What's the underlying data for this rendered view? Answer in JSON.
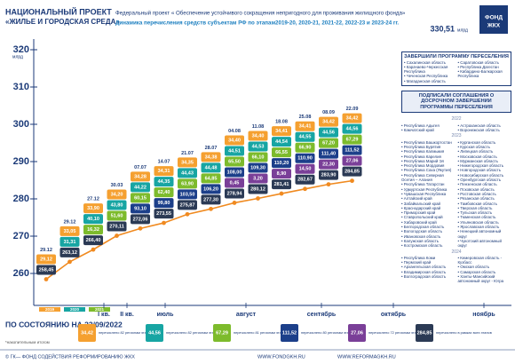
{
  "header": {
    "project": "НАЦИОНАЛЬНЫЙ ПРОЕКТ",
    "project_name": "«ЖИЛЬЕ И ГОРОДСКАЯ СРЕДА»",
    "federal": "Федеральный проект « Обеспечение устойчивого сокращения непригодного для проживания жилищного фонда»",
    "subtitle": "Динамика перечисления средств субъектам РФ по этапам2019-20, 2020-21, 2021-22, 2022-23 и 2023-24 гг.",
    "total": "330,51",
    "total_unit": "млрд",
    "logo_top": "ФОНД",
    "logo_bottom": "ЖКХ"
  },
  "chart_data": {
    "type": "line",
    "categories": [
      "29.12",
      "29.12",
      "27.12",
      "30.03",
      "07.07",
      "14.07",
      "21.07",
      "28.07",
      "04.08",
      "11.08",
      "18.08",
      "25.08",
      "08.09",
      "22.09"
    ],
    "values": [
      258.45,
      263.12,
      266.4,
      270.11,
      272.06,
      273.55,
      275.87,
      277.3,
      278.94,
      280.12,
      281.41,
      282.67,
      283.9,
      284.85
    ],
    "value_labels": [
      "258,45",
      "263,12",
      "266,40",
      "270,11",
      "272,06",
      "273,55",
      "275,87",
      "277,30",
      "278,94",
      "280,12",
      "281,41",
      "282,67",
      "283,90",
      "284,85"
    ],
    "name": "перечислено в рамках всех этапов",
    "color": "#f08a20",
    "label_color": "#2b3a55",
    "series": [
      {
        "name": "перечислено 82 регионам этап 2019-20",
        "color": "#f5a030",
        "values": [
          29.12,
          33.05,
          33.9,
          34.2,
          34.28,
          34.31,
          34.35,
          34.38,
          34.4,
          34.4,
          34.41,
          34.41,
          34.42,
          34.42
        ],
        "value_labels": [
          "29,12",
          "33,05",
          "33,90",
          "34,20",
          "34,28",
          "34,31",
          "34,35",
          "34,38",
          "34,40",
          "34,40",
          "34,41",
          "34,41",
          "34,42",
          "34,42"
        ]
      },
      {
        "name": "перечислено 82 регионам этап 2020-21",
        "color": "#17a5a3",
        "values": [
          null,
          31.31,
          40.1,
          43.8,
          44.22,
          44.35,
          44.43,
          44.48,
          44.51,
          44.53,
          44.54,
          44.55,
          44.56,
          44.56
        ],
        "value_labels": [
          null,
          "31,31",
          "40,10",
          "43,80",
          "44,22",
          "44,35",
          "44,43",
          "44,48",
          "44,51",
          "44,53",
          "44,54",
          "44,55",
          "44,56",
          "44,56"
        ]
      },
      {
        "name": "перечислено 81 регионам этап 2021-22",
        "color": "#7dbb2c",
        "values": [
          null,
          null,
          16.32,
          51.6,
          60.15,
          62.4,
          63.9,
          64.85,
          65.5,
          66.1,
          66.55,
          66.9,
          67.2,
          67.29
        ],
        "value_labels": [
          null,
          null,
          "16,32",
          "51,60",
          "60,15",
          "62,40",
          "63,90",
          "64,85",
          "65,50",
          "66,10",
          "66,55",
          "66,90",
          "67,20",
          "67,29"
        ]
      },
      {
        "name": "перечислено 80 регионам этап 2022-23",
        "color": "#1c3f8a",
        "values": [
          null,
          null,
          null,
          null,
          93.1,
          99.8,
          103.5,
          106.2,
          108,
          109.3,
          110.2,
          110.9,
          111.4,
          111.52
        ],
        "value_labels": [
          null,
          null,
          null,
          null,
          "93,10",
          "99,80",
          "103,50",
          "106,20",
          "108,00",
          "109,30",
          "110,20",
          "110,90",
          "111,40",
          "111,52"
        ]
      },
      {
        "name": "перечислено 72 регионам этап 2023-24",
        "color": "#7a3f98",
        "values": [
          null,
          null,
          null,
          null,
          null,
          null,
          null,
          null,
          0.45,
          3.2,
          8.9,
          14.5,
          22.3,
          27.06
        ],
        "value_labels": [
          null,
          null,
          null,
          null,
          null,
          null,
          null,
          null,
          "0,45",
          "3,20",
          "8,90",
          "14,50",
          "22,30",
          "27,06"
        ]
      }
    ],
    "ylim": [
      252,
      325
    ],
    "yticks": [
      260,
      270,
      280,
      290,
      300,
      310,
      320
    ],
    "y_unit": "млрд",
    "periods": [
      "I кв.",
      "II кв.",
      "июль",
      "август",
      "сентябрь",
      "октябрь",
      "ноябрь"
    ],
    "year_markers": [
      "2019",
      "2020",
      "2021"
    ]
  },
  "panel": {
    "completed": {
      "title": "ЗАВЕРШИЛИ ПРОГРАММУ ПЕРЕСЕЛЕНИЯ",
      "left": [
        "Сахалинская область",
        "Карачаево-Черкесская Республика",
        "Чеченская Республика",
        "Магаданская область"
      ],
      "right": [
        "Саратовская область",
        "Республика Дагестан",
        "Кабардино-Балкарская Республика"
      ]
    },
    "agreements": {
      "title": "ПОДПИСАЛИ СОГЛАШЕНИЯ О ДОСРОЧНОМ ЗАВЕРШЕНИИ ПРОГРАММЫ ПЕРЕСЕЛЕНИЯ",
      "groups": [
        {
          "year": "2022",
          "left": [
            "Республика Адыгея",
            "Камчатский край"
          ],
          "right": [
            "Астраханская область",
            "Воронежская область"
          ]
        },
        {
          "year": "2023",
          "left": [
            "Республика Башкортостан",
            "Республика Бурятия",
            "Республика Калмыкия",
            "Республика Карелия",
            "Республика Марий Эл",
            "Республика Мордовия",
            "Республика Саха (Якутия)",
            "Республика Северная Осетия – Алания",
            "Республика Татарстан",
            "Удмуртская Республика",
            "Чувашская Республика",
            "Алтайский край",
            "Забайкальский край",
            "Краснодарский край",
            "Приморский край",
            "Ставропольский край",
            "Хабаровский край",
            "Белгородская область",
            "Вологодская область",
            "Ивановская область",
            "Калужская область",
            "Костромская область"
          ],
          "right": [
            "Курганская область",
            "Курская область",
            "Липецкая область",
            "Московская область",
            "Мурманская область",
            "Нижегородская область",
            "Новгородская область",
            "Новосибирская область",
            "Оренбургская область",
            "Пензенская область",
            "Псковская область",
            "Ростовская область",
            "Рязанская область",
            "Тамбовская область",
            "Тверская область",
            "Тульская область",
            "Тюменская область",
            "Ульяновская область",
            "Ярославская область",
            "Ненецкий автономный округ",
            "Чукотский автономный округ"
          ]
        },
        {
          "year": "2024",
          "left": [
            "Республика Коми",
            "Пермский край",
            "Архангельская область",
            "Владимирская область",
            "Волгоградская область"
          ],
          "right": [
            "Кемеровская область - Кузбасс",
            "Омская область",
            "Самарская область",
            "Ханты-Мансийский автономный округ - Югра"
          ]
        }
      ]
    }
  },
  "footer": {
    "status": "ПО СОСТОЯНИЮ НА 22/09/2022",
    "note": "*накопительным итогом",
    "copyright": "© ГК— ФОНД СОДЕЙСТВИЯ РЕФОРМИРОВАНИЮ ЖКХ",
    "site1": "WWW.FONDGKH.RU",
    "site2": "WWW.REFORMAGKH.RU"
  }
}
